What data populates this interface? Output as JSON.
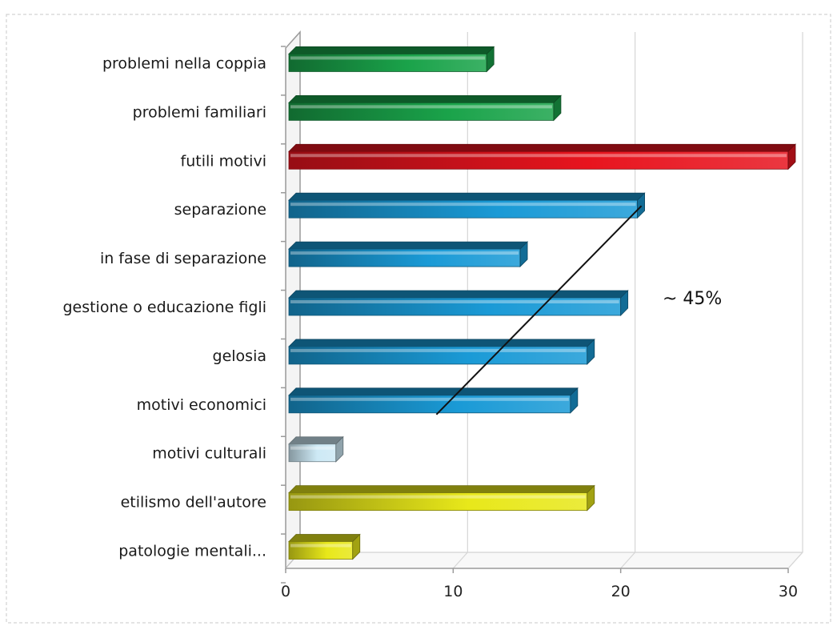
{
  "chart_data": {
    "type": "bar",
    "orientation": "horizontal",
    "categories": [
      "problemi nella coppia",
      "problemi familiari",
      "futili motivi",
      "separazione",
      "in fase di separazione",
      "gestione o educazione figli",
      "gelosia",
      "motivi economici",
      "motivi culturali",
      "etilismo dell'autore",
      "patologie mentali..."
    ],
    "values": [
      12,
      16,
      30,
      21,
      14,
      20,
      18,
      17,
      3,
      18,
      4
    ],
    "colors": [
      "#1aa34a",
      "#1aa34a",
      "#e8141e",
      "#1a9ad6",
      "#1a9ad6",
      "#1a9ad6",
      "#1a9ad6",
      "#1a9ad6",
      "#cde9f5",
      "#e8e81a",
      "#e8e81a"
    ],
    "xlim": [
      0,
      30
    ],
    "xticks": [
      0,
      10,
      20,
      30
    ],
    "grid": true,
    "style": "3d",
    "annotation": {
      "text": "~ 45%",
      "line_from": {
        "category": "motivi economici",
        "value": 9
      },
      "line_to": {
        "category": "separazione",
        "value": 21
      }
    }
  }
}
